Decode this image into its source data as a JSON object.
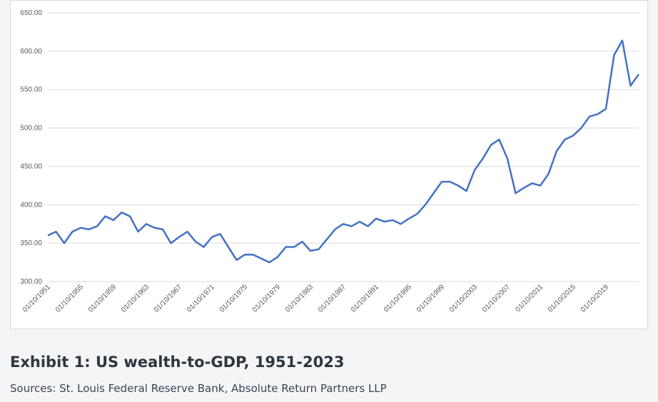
{
  "chart_data": {
    "type": "line",
    "title": "Exhibit 1: US wealth-to-GDP, 1951-2023",
    "subtitle": "Sources: St. Louis Federal Reserve Bank, Absolute Return Partners LLP",
    "categories": [
      "01/10/1951",
      null,
      null,
      null,
      "01/10/1955",
      null,
      null,
      null,
      "01/10/1959",
      null,
      null,
      null,
      "01/10/1963",
      null,
      null,
      null,
      "01/10/1967",
      null,
      null,
      null,
      "01/10/1971",
      null,
      null,
      null,
      "01/10/1975",
      null,
      null,
      null,
      "01/10/1979",
      null,
      null,
      null,
      "01/10/1983",
      null,
      null,
      null,
      "01/10/1987",
      null,
      null,
      null,
      "01/10/1991",
      null,
      null,
      null,
      "01/10/1995",
      null,
      null,
      null,
      "01/10/1999",
      null,
      null,
      null,
      "01/10/2003",
      null,
      null,
      null,
      "01/10/2007",
      null,
      null,
      null,
      "01/10/2011",
      null,
      null,
      null,
      "01/10/2015",
      null,
      null,
      null,
      "01/10/2019",
      null,
      null,
      null,
      null
    ],
    "series": [
      {
        "name": "US wealth-to-GDP",
        "color": "#4472c4",
        "values": [
          360,
          365,
          350,
          365,
          370,
          368,
          372,
          385,
          380,
          390,
          385,
          365,
          375,
          370,
          368,
          350,
          358,
          365,
          352,
          345,
          358,
          362,
          345,
          328,
          335,
          335,
          330,
          325,
          332,
          345,
          345,
          352,
          340,
          342,
          355,
          368,
          375,
          372,
          378,
          372,
          382,
          378,
          380,
          375,
          382,
          388,
          400,
          415,
          430,
          430,
          425,
          418,
          445,
          460,
          478,
          485,
          460,
          415,
          422,
          428,
          425,
          440,
          470,
          485,
          490,
          500,
          515,
          518,
          525,
          595,
          614,
          555,
          570
        ]
      }
    ],
    "ylim": [
      300,
      650
    ],
    "yticks": [
      {
        "value": 300,
        "label": "300.00"
      },
      {
        "value": 350,
        "label": "350.00"
      },
      {
        "value": 400,
        "label": "400.00"
      },
      {
        "value": 450,
        "label": "450.00"
      },
      {
        "value": 500,
        "label": "500.00"
      },
      {
        "value": 550,
        "label": "550.00"
      },
      {
        "value": 600,
        "label": "600.00"
      },
      {
        "value": 650,
        "label": "650.00"
      }
    ],
    "grid": true
  }
}
